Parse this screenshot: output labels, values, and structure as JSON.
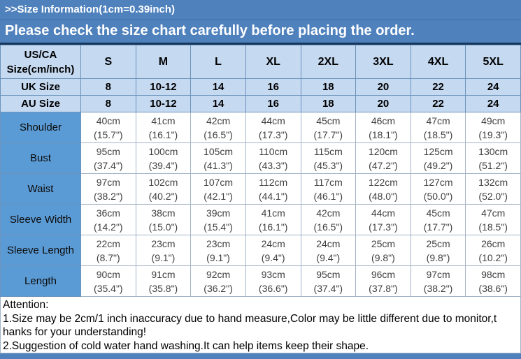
{
  "header": {
    "line1": ">>Size Information(1cm=0.39inch)",
    "line2": "Please check the size chart carefully before placing the order."
  },
  "colors": {
    "banner_blue": "#4f81bd",
    "light_blue": "#c5d9f1",
    "label_blue": "#5b9bd5"
  },
  "table": {
    "corner_header": {
      "line1": "US/CA",
      "line2": "Size(cm/inch)"
    },
    "size_columns": [
      "S",
      "M",
      "L",
      "XL",
      "2XL",
      "3XL",
      "4XL",
      "5XL"
    ],
    "size_rows": [
      {
        "label": "UK Size",
        "values": [
          "8",
          "10-12",
          "14",
          "16",
          "18",
          "20",
          "22",
          "24"
        ]
      },
      {
        "label": "AU Size",
        "values": [
          "8",
          "10-12",
          "14",
          "16",
          "18",
          "20",
          "22",
          "24"
        ]
      }
    ],
    "measurement_rows": [
      {
        "label": "Shoulder",
        "cm": [
          "40cm",
          "41cm",
          "42cm",
          "44cm",
          "45cm",
          "46cm",
          "47cm",
          "49cm"
        ],
        "inch": [
          "(15.7\")",
          "(16.1\")",
          "(16.5\")",
          "(17.3\")",
          "(17.7\")",
          "(18.1\")",
          "(18.5\")",
          "(19.3\")"
        ]
      },
      {
        "label": "Bust",
        "cm": [
          "95cm",
          "100cm",
          "105cm",
          "110cm",
          "115cm",
          "120cm",
          "125cm",
          "130cm"
        ],
        "inch": [
          "(37.4\")",
          "(39.4\")",
          "(41.3\")",
          "(43.3\")",
          "(45.3\")",
          "(47.2\")",
          "(49.2\")",
          "(51.2\")"
        ]
      },
      {
        "label": "Waist",
        "cm": [
          "97cm",
          "102cm",
          "107cm",
          "112cm",
          "117cm",
          "122cm",
          "127cm",
          "132cm"
        ],
        "inch": [
          "(38.2\")",
          "(40.2\")",
          "(42.1\")",
          "(44.1\")",
          "(46.1\")",
          "(48.0\")",
          "(50.0\")",
          "(52.0\")"
        ]
      },
      {
        "label": "Sleeve Width",
        "cm": [
          "36cm",
          "38cm",
          "39cm",
          "41cm",
          "42cm",
          "44cm",
          "45cm",
          "47cm"
        ],
        "inch": [
          "(14.2\")",
          "(15.0\")",
          "(15.4\")",
          "(16.1\")",
          "(16.5\")",
          "(17.3\")",
          "(17.7\")",
          "(18.5\")"
        ]
      },
      {
        "label": "Sleeve Length",
        "cm": [
          "22cm",
          "23cm",
          "23cm",
          "24cm",
          "24cm",
          "25cm",
          "25cm",
          "26cm"
        ],
        "inch": [
          "(8.7\")",
          "(9.1\")",
          "(9.1\")",
          "(9.4\")",
          "(9.4\")",
          "(9.8\")",
          "(9.8\")",
          "(10.2\")"
        ]
      },
      {
        "label": "Length",
        "cm": [
          "90cm",
          "91cm",
          "92cm",
          "93cm",
          "95cm",
          "96cm",
          "97cm",
          "98cm"
        ],
        "inch": [
          "(35.4\")",
          "(35.8\")",
          "(36.2\")",
          "(36.6\")",
          "(37.4\")",
          "(37.8\")",
          "(38.2\")",
          "(38.6\")"
        ]
      }
    ]
  },
  "attention": {
    "title": "Attention:",
    "lines": [
      "1.Size may be 2cm/1 inch inaccuracy due to hand measure,Color may be little different due to monitor,t",
      "hanks for your understanding!",
      "2.Suggestion of cold water hand washing.It can help items keep their shape."
    ]
  }
}
